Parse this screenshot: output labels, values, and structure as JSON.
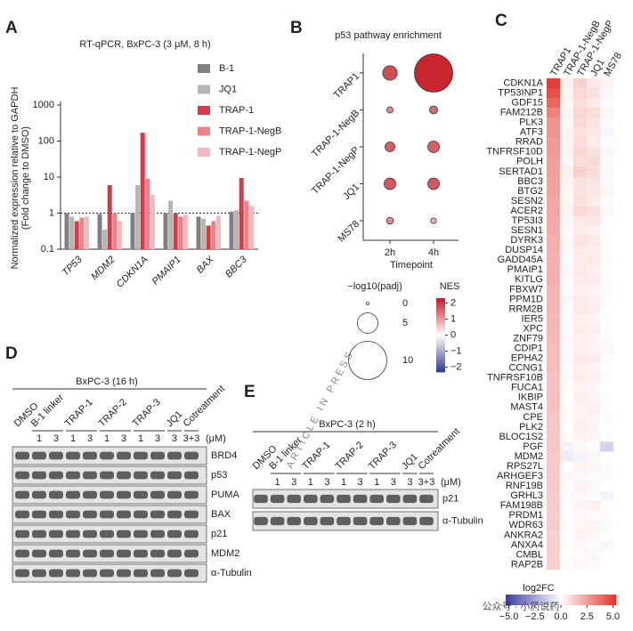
{
  "chart_data": [
    {
      "type": "bar",
      "panel": "A",
      "subtitle": "RT-qPCR, BxPC-3 (3 μM, 8 h)",
      "y_label": [
        "Normalized expression relative to GAPDH",
        "(Fold change to DMSO)"
      ],
      "categories": [
        "TP53",
        "MDM2",
        "CDKN1A",
        "PMAIP1",
        "BAX",
        "BBC3"
      ],
      "series": [
        {
          "name": "B-1",
          "color": "#808080",
          "values": [
            1.0,
            0.95,
            1.0,
            1.0,
            0.8,
            1.1
          ]
        },
        {
          "name": "JQ1",
          "color": "#b5b5b5",
          "values": [
            0.8,
            0.35,
            6,
            2.2,
            0.7,
            1.2
          ]
        },
        {
          "name": "TRAP-1",
          "color": "#d63a44",
          "values": [
            0.6,
            6,
            170,
            1.0,
            0.45,
            9.5
          ]
        },
        {
          "name": "TRAP-1-NegB",
          "color": "#e9828a",
          "values": [
            0.75,
            1.0,
            9,
            0.8,
            0.6,
            2.2
          ]
        },
        {
          "name": "TRAP-1-NegP",
          "color": "#f0babe",
          "values": [
            0.8,
            0.6,
            3.2,
            0.9,
            0.85,
            1.6
          ]
        }
      ],
      "log_scale": true,
      "ylim": [
        0.1,
        1000
      ],
      "yticks": [
        0.1,
        1,
        10,
        100,
        1000
      ],
      "reference_line": 1
    },
    {
      "type": "dot",
      "panel": "B",
      "title": "p53 pathway enrichment",
      "categories": [
        "TRAP1",
        "TRAP-1-NegB",
        "TRAP-1-NegP",
        "JQ1",
        "MS78"
      ],
      "x": [
        "2h",
        "4h"
      ],
      "x_label": "Timepoint",
      "values": [
        [
          1.8,
          1.2,
          1.6,
          1.7,
          1.2
        ],
        [
          2.2,
          1.5,
          1.6,
          1.7,
          0.8
        ]
      ],
      "sizes": [
        [
          3.3,
          1.0,
          2.0,
          2.5,
          1.2
        ],
        [
          10,
          1.5,
          2.5,
          2.5,
          0.8
        ]
      ],
      "size_legend": {
        "title": "−log10(padj)",
        "values": [
          0,
          5,
          10
        ]
      },
      "color_legend": {
        "title": "NES",
        "lim": [
          -2.3,
          2.3
        ],
        "ticks": [
          2,
          1,
          0,
          {
            "value": -1,
            "label": "−1"
          },
          {
            "value": -2,
            "label": "−2"
          }
        ]
      }
    },
    {
      "type": "heatmap",
      "panel": "C",
      "columns": [
        "TRAP1",
        "TRAP-1-NegB",
        "TRAP-1-NegP",
        "JQ1",
        "MS78"
      ],
      "rows": [
        "CDKN1A",
        "TP53INP1",
        "GDF15",
        "FAM212B",
        "PLK3",
        "ATF3",
        "RRAD",
        "TNFRSF10D",
        "POLH",
        "SERTAD1",
        "BBC3",
        "BTG2",
        "SESN2",
        "ACER2",
        "TP53I3",
        "SESN1",
        "DYRK3",
        "DUSP14",
        "GADD45A",
        "PMAIP1",
        "KITLG",
        "FBXW7",
        "PPM1D",
        "RRM2B",
        "IER5",
        "XPC",
        "ZNF79",
        "CDIP1",
        "EPHA2",
        "CCNG1",
        "TNFRSF10B",
        "FUCA1",
        "IKBIP",
        "MAST4",
        "CPE",
        "PLK2",
        "BLOC1S2",
        "PGF",
        "MDM2",
        "RPS27L",
        "ARHGEF3",
        "RNF19B",
        "GRHL3",
        "FAM198B",
        "PRDM1",
        "WDR63",
        "ANKRA2",
        "ANXA4",
        "CMBL",
        "RAP2B"
      ],
      "values": [
        [
          5.0,
          0.4,
          1.2,
          0.6,
          0.3
        ],
        [
          4.6,
          0.3,
          1.0,
          0.8,
          0.2
        ],
        [
          4.0,
          0.2,
          0.9,
          0.5,
          0.1
        ],
        [
          3.2,
          0.3,
          1.1,
          0.9,
          0.2
        ],
        [
          2.8,
          0.2,
          1.0,
          0.7,
          0.1
        ],
        [
          2.8,
          0.3,
          0.8,
          0.6,
          -0.2
        ],
        [
          2.6,
          0.2,
          0.9,
          0.5,
          0.1
        ],
        [
          2.6,
          0.3,
          1.1,
          0.8,
          0.2
        ],
        [
          2.5,
          0.2,
          0.9,
          1.0,
          0.1
        ],
        [
          2.5,
          0.4,
          1.2,
          0.9,
          0.2
        ],
        [
          2.4,
          0.3,
          0.8,
          0.7,
          0.1
        ],
        [
          2.4,
          0.2,
          0.7,
          0.6,
          0.2
        ],
        [
          2.3,
          0.2,
          0.8,
          0.5,
          0.1
        ],
        [
          2.3,
          0.3,
          1.0,
          0.8,
          0.2
        ],
        [
          2.2,
          0.2,
          0.6,
          0.7,
          0.1
        ],
        [
          2.2,
          0.1,
          0.5,
          0.4,
          0.0
        ],
        [
          2.1,
          0.2,
          0.7,
          0.6,
          0.1
        ],
        [
          2.1,
          0.2,
          0.6,
          0.5,
          0.1
        ],
        [
          2.0,
          0.1,
          0.5,
          0.6,
          0.1
        ],
        [
          2.0,
          0.2,
          0.6,
          0.4,
          0.0
        ],
        [
          2.0,
          0.1,
          0.5,
          0.5,
          0.1
        ],
        [
          1.9,
          0.1,
          0.4,
          0.3,
          -0.1
        ],
        [
          1.9,
          0.2,
          0.5,
          0.4,
          0.1
        ],
        [
          1.9,
          0.1,
          0.6,
          0.5,
          0.0
        ],
        [
          1.8,
          0.1,
          0.4,
          0.3,
          0.1
        ],
        [
          1.8,
          0.1,
          0.5,
          0.4,
          0.0
        ],
        [
          1.8,
          0.2,
          0.4,
          0.3,
          0.1
        ],
        [
          1.7,
          0.1,
          0.4,
          0.3,
          -0.2
        ],
        [
          1.7,
          0.2,
          0.6,
          0.5,
          0.1
        ],
        [
          1.7,
          0.1,
          0.4,
          0.3,
          0.0
        ],
        [
          1.6,
          0.1,
          0.5,
          0.4,
          0.1
        ],
        [
          1.6,
          0.1,
          0.3,
          0.2,
          0.0
        ],
        [
          1.6,
          0.0,
          0.4,
          0.3,
          0.1
        ],
        [
          1.6,
          0.1,
          0.3,
          0.4,
          0.0
        ],
        [
          1.5,
          0.1,
          0.3,
          0.2,
          -0.1
        ],
        [
          1.5,
          0.0,
          0.4,
          0.3,
          0.0
        ],
        [
          1.5,
          0.1,
          0.3,
          0.2,
          0.1
        ],
        [
          1.5,
          -0.3,
          0.2,
          0.1,
          -1.2
        ],
        [
          1.4,
          -0.5,
          -0.3,
          0.2,
          0.0
        ],
        [
          1.4,
          0.0,
          0.3,
          0.2,
          0.1
        ],
        [
          1.4,
          -0.2,
          0.2,
          0.1,
          -0.1
        ],
        [
          1.4,
          0.1,
          0.3,
          0.2,
          0.0
        ],
        [
          1.3,
          -0.1,
          0.2,
          0.1,
          -0.3
        ],
        [
          1.3,
          0.1,
          0.3,
          0.4,
          0.0
        ],
        [
          1.3,
          0.0,
          0.2,
          0.1,
          0.1
        ],
        [
          1.3,
          0.1,
          0.2,
          0.3,
          -0.1
        ],
        [
          1.2,
          0.0,
          0.3,
          0.2,
          0.0
        ],
        [
          1.2,
          0.1,
          0.2,
          0.1,
          -0.2
        ],
        [
          1.2,
          0.0,
          0.1,
          0.2,
          0.0
        ],
        [
          1.2,
          0.1,
          0.2,
          0.1,
          0.0
        ]
      ],
      "color_legend": {
        "title": "log2FC",
        "lim": [
          -5.3,
          5.3
        ],
        "ticks": [
          {
            "value": -5,
            "label": "−5.0"
          },
          {
            "value": -2.5,
            "label": "−2.5"
          },
          {
            "value": 0,
            "label": "0.0"
          },
          2.5,
          {
            "value": 5,
            "label": "5.0"
          }
        ]
      }
    }
  ],
  "blots": [
    {
      "panel": "D",
      "title": "BxPC-3 (16 h)",
      "unit": "(μM)",
      "groups": [
        {
          "name": "DMSO",
          "doses": []
        },
        {
          "name": "B-1 linker",
          "doses": [
            "1",
            "3"
          ]
        },
        {
          "name": "TRAP-1",
          "doses": [
            "1",
            "3"
          ]
        },
        {
          "name": "TRAP-2",
          "doses": [
            "1",
            "3"
          ]
        },
        {
          "name": "TRAP-3",
          "doses": [
            "1",
            "3"
          ]
        },
        {
          "name": "JQ1",
          "doses": [
            "3"
          ]
        },
        {
          "name": "Cotreatment",
          "doses": [
            "3+3"
          ]
        }
      ],
      "proteins": [
        "BRD4",
        "p53",
        "PUMA",
        "BAX",
        "p21",
        "MDM2",
        "α-Tubulin"
      ]
    },
    {
      "panel": "E",
      "title": "BxPC-3 (2 h)",
      "unit": "(μM)",
      "groups": [
        {
          "name": "DMSO",
          "doses": []
        },
        {
          "name": "B-1 linker",
          "doses": [
            "1",
            "3"
          ]
        },
        {
          "name": "TRAP-1",
          "doses": [
            "1",
            "3"
          ]
        },
        {
          "name": "TRAP-2",
          "doses": [
            "1",
            "3"
          ]
        },
        {
          "name": "TRAP-3",
          "doses": [
            "1",
            "3"
          ]
        },
        {
          "name": "JQ1",
          "doses": [
            "3"
          ]
        },
        {
          "name": "Cotreatment",
          "doses": [
            "3+3"
          ]
        }
      ],
      "proteins": [
        "p21",
        "α-Tubulin"
      ]
    }
  ],
  "watermarks": [
    "ARTICLE IN PRESS",
    "公众号 · 小药说药"
  ]
}
